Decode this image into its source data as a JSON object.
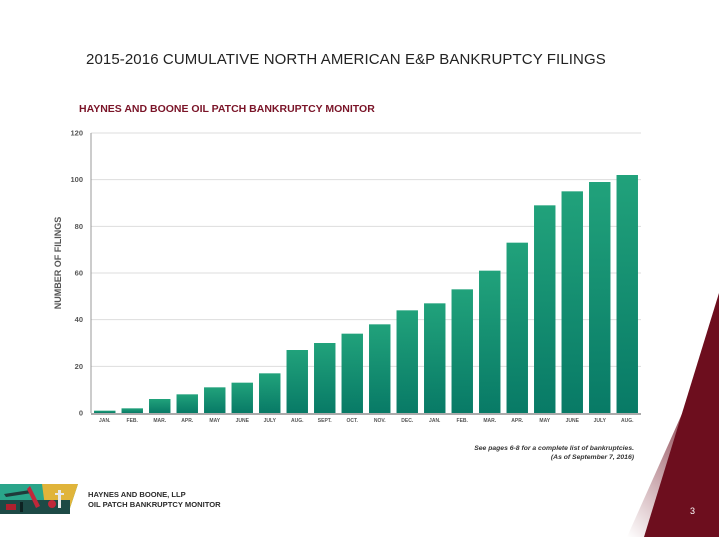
{
  "slide": {
    "title": "2015-2016 CUMULATIVE NORTH AMERICAN E&P BANKRUPTCY FILINGS",
    "page_number": "3"
  },
  "footer": {
    "company_line1": "HAYNES AND BOONE, LLP",
    "company_line2": "OIL PATCH BANKRUPTCY MONITOR",
    "logo_icon": "oil-pump-illustration"
  },
  "footnote": {
    "line1": "See pages 6-8 for a complete list of bankruptcies.",
    "line2": "(As of September 7, 2016)"
  },
  "colors": {
    "bar_top": "#21a27b",
    "bar_bottom": "#087a66",
    "accent_red": "#6d0e1e",
    "chart_title": "#7a1428",
    "gridline": "#dddddd"
  },
  "chart_data": {
    "type": "bar",
    "title": "HAYNES AND BOONE OIL PATCH BANKRUPTCY MONITOR",
    "xlabel": "",
    "ylabel": "NUMBER OF FILINGS",
    "ylim": [
      0,
      120
    ],
    "yticks": [
      0,
      20,
      40,
      60,
      80,
      100,
      120
    ],
    "grid": true,
    "legend": "none",
    "categories": [
      "JAN.",
      "FEB.",
      "MAR.",
      "APR.",
      "MAY",
      "JUNE",
      "JULY",
      "AUG.",
      "SEPT.",
      "OCT.",
      "NOV.",
      "DEC.",
      "JAN.",
      "FEB.",
      "MAR.",
      "APR.",
      "MAY",
      "JUNE",
      "JULY",
      "AUG."
    ],
    "values": [
      1,
      2,
      6,
      8,
      11,
      13,
      17,
      27,
      30,
      34,
      38,
      44,
      47,
      53,
      61,
      73,
      89,
      95,
      99,
      102
    ]
  }
}
